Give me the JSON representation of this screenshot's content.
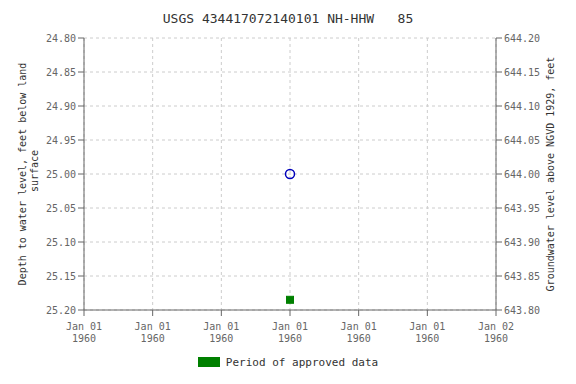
{
  "chart_data": {
    "type": "scatter",
    "title": "USGS 434417072140101 NH-HHW   85",
    "y_label": "Depth to water level, feet below land\n surface",
    "y2_label": "Groundwater level above NGVD 1929, feet",
    "categories": [
      "Jan 01\n1960",
      "Jan 01\n1960",
      "Jan 01\n1960",
      "Jan 01\n1960",
      "Jan 01\n1960",
      "Jan 01\n1960",
      "Jan 02\n1960"
    ],
    "series": [
      {
        "color": "#0000bb",
        "marker": "open_circle",
        "values": [
          null,
          null,
          null,
          25.0,
          null,
          null,
          null
        ]
      },
      {
        "name": "Period of approved data",
        "color": "#008000",
        "marker": "square",
        "values": [
          null,
          null,
          null,
          25.185,
          null,
          null,
          null
        ]
      }
    ],
    "ylim": [
      25.2,
      24.8
    ],
    "yticks": [
      {
        "value": 24.8,
        "label": "24.80"
      },
      24.85,
      {
        "value": 24.9,
        "label": "24.90"
      },
      24.95,
      {
        "value": 25.0,
        "label": "25.00"
      },
      25.05,
      {
        "value": 25.1,
        "label": "25.10"
      },
      25.15,
      {
        "value": 25.2,
        "label": "25.20"
      }
    ],
    "y2lim": [
      643.8,
      644.2
    ],
    "y2ticks": [
      {
        "value": 644.2,
        "label": "644.20"
      },
      644.15,
      {
        "value": 644.1,
        "label": "644.10"
      },
      644.05,
      {
        "value": 644.0,
        "label": "644.00"
      },
      643.95,
      {
        "value": 643.9,
        "label": "643.90"
      },
      643.85,
      {
        "value": 643.8,
        "label": "643.80"
      }
    ],
    "grid": true
  }
}
